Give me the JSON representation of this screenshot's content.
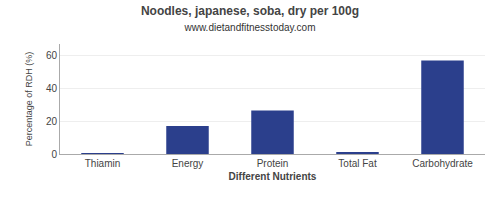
{
  "chart_data": {
    "type": "bar",
    "title": "Noodles, japanese, soba, dry per 100g",
    "subtitle": "www.dietandfitnesstoday.com",
    "xlabel": "Different Nutrients",
    "ylabel": "Percentage of RDH (%)",
    "categories": [
      "Thiamin",
      "Energy",
      "Protein",
      "Total Fat",
      "Carbohydrate"
    ],
    "values": [
      0.3,
      17.0,
      26.5,
      1.0,
      57.0
    ],
    "color": "#2b3f8c",
    "ylim": [
      0,
      67
    ],
    "yticks": [
      0,
      20,
      40,
      60
    ],
    "grid": true
  }
}
